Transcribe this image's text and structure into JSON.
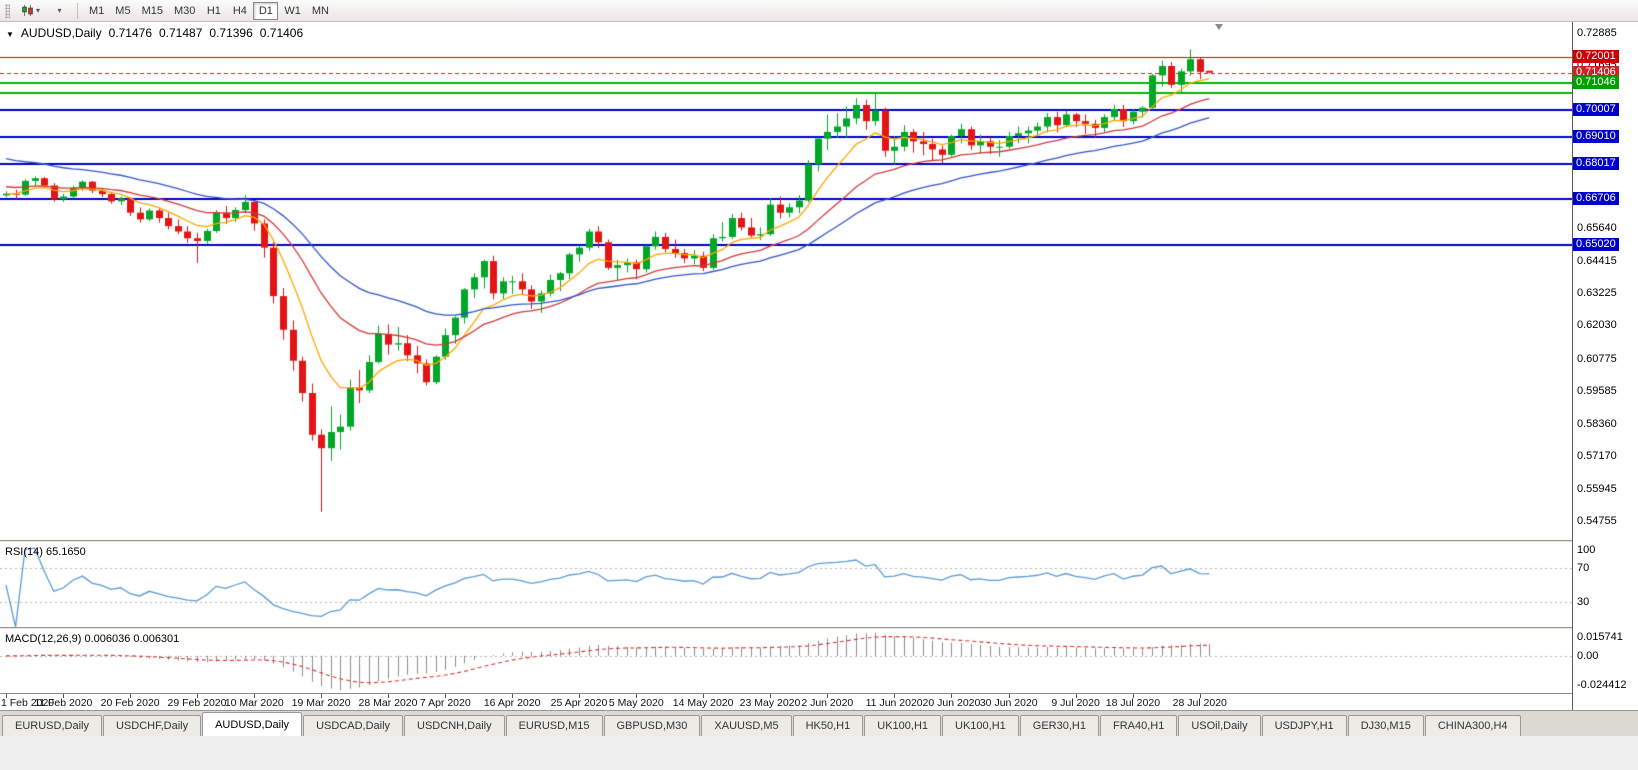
{
  "toolbar": {
    "caret": "▾",
    "timeframes": [
      "M1",
      "M5",
      "M15",
      "M30",
      "H1",
      "H4",
      "D1",
      "W1",
      "MN"
    ],
    "active_timeframe": "D1"
  },
  "chart": {
    "collapse_icon": "▼",
    "title": "AUDUSD,Daily",
    "open": "0.71476",
    "high": "0.71487",
    "low": "0.71396",
    "close": "0.71406"
  },
  "chart_data": {
    "type": "candlestick",
    "symbol": "AUDUSD",
    "timeframe": "Daily",
    "up_color": "#00A628",
    "down_color": "#E21414",
    "y_axis_labels": [
      "0.72885",
      "0.71695",
      "0.65640",
      "0.64415",
      "0.63225",
      "0.62030",
      "0.60775",
      "0.59585",
      "0.58360",
      "0.57170",
      "0.55945",
      "0.54755"
    ],
    "price_badges": [
      {
        "price": 0.72001,
        "text": "0.72001",
        "color": "#CC0000"
      },
      {
        "price": 0.71406,
        "text": "0.71406",
        "color": "#D02020"
      },
      {
        "price": 0.71046,
        "text": "0.71046",
        "color": "#00A000"
      },
      {
        "price": 0.70007,
        "text": "0.70007",
        "color": "#0000CD"
      },
      {
        "price": 0.6901,
        "text": "0.69010",
        "color": "#0000CD"
      },
      {
        "price": 0.68017,
        "text": "0.68017",
        "color": "#0000CD"
      },
      {
        "price": 0.66706,
        "text": "0.66706",
        "color": "#0000CD"
      },
      {
        "price": 0.6502,
        "text": "0.65020",
        "color": "#0000CD"
      }
    ],
    "hlines": [
      {
        "price": 0.72001,
        "color": "#CC0000",
        "width": 1,
        "dash": false,
        "name": "resistance-line-red"
      },
      {
        "price": 0.71406,
        "color": "#D02020",
        "width": 1,
        "dash": true,
        "name": "current-price-line"
      },
      {
        "price": 0.71046,
        "color": "#00B400",
        "width": 2,
        "dash": false,
        "name": "level-line-green-1"
      },
      {
        "price": 0.7065,
        "color": "#00B400",
        "width": 2,
        "dash": false,
        "name": "level-line-green-2"
      },
      {
        "price": 0.70007,
        "color": "#0000CD",
        "width": 2,
        "dash": false,
        "name": "support-line-blue-1"
      },
      {
        "price": 0.6901,
        "color": "#0000CD",
        "width": 2,
        "dash": false,
        "name": "support-line-blue-2"
      },
      {
        "price": 0.68017,
        "color": "#0000CD",
        "width": 2,
        "dash": false,
        "name": "support-line-blue-3"
      },
      {
        "price": 0.66706,
        "color": "#0000CD",
        "width": 2,
        "dash": false,
        "name": "support-line-blue-4"
      },
      {
        "price": 0.6502,
        "color": "#0000CD",
        "width": 2,
        "dash": false,
        "name": "support-line-blue-5"
      }
    ],
    "x_labels": [
      {
        "i": 0,
        "text": "1 Feb 2020"
      },
      {
        "i": 6,
        "text": "11 Feb 2020"
      },
      {
        "i": 13,
        "text": "20 Feb 2020"
      },
      {
        "i": 20,
        "text": "29 Feb 2020"
      },
      {
        "i": 26,
        "text": "10 Mar 2020"
      },
      {
        "i": 33,
        "text": "19 Mar 2020"
      },
      {
        "i": 40,
        "text": "28 Mar 2020"
      },
      {
        "i": 46,
        "text": "7 Apr 2020"
      },
      {
        "i": 53,
        "text": "16 Apr 2020"
      },
      {
        "i": 60,
        "text": "25 Apr 2020"
      },
      {
        "i": 66,
        "text": "5 May 2020"
      },
      {
        "i": 73,
        "text": "14 May 2020"
      },
      {
        "i": 80,
        "text": "23 May 2020"
      },
      {
        "i": 86,
        "text": "2 Jun 2020"
      },
      {
        "i": 93,
        "text": "11 Jun 2020"
      },
      {
        "i": 99,
        "text": "20 Jun 2020"
      },
      {
        "i": 105,
        "text": "30 Jun 2020"
      },
      {
        "i": 112,
        "text": "9 Jul 2020"
      },
      {
        "i": 118,
        "text": "18 Jul 2020"
      },
      {
        "i": 125,
        "text": "28 Jul 2020"
      }
    ],
    "moving_averages": [
      {
        "name": "fast-ma",
        "period": 8,
        "color": "#FFA500",
        "seed": null
      },
      {
        "name": "medium-ma",
        "period": 20,
        "color": "#D23B3B",
        "seed": 0.672
      },
      {
        "name": "slow-ma",
        "period": 34,
        "color": "#3355CC",
        "seed": 0.683
      }
    ],
    "indicators": {
      "rsi": {
        "label": "RSI(14) 65.1650",
        "period": 14,
        "value": 65.165,
        "levels": [
          100,
          70,
          30
        ],
        "color": "#5B9BD5"
      },
      "macd": {
        "label": "MACD(12,26,9) 0.006036 0.006301",
        "fast": 12,
        "slow": 26,
        "signal": 9,
        "values": [
          0.006036,
          0.006301
        ],
        "axis_labels": [
          "0.015741",
          "0.00",
          "-0.024412"
        ],
        "hist_color": "#8c8c8c",
        "signal_color": "#E03030"
      }
    },
    "candles": [
      [
        0.6685,
        0.6701,
        0.6678,
        0.6692
      ],
      [
        0.6692,
        0.6706,
        0.6671,
        0.6688
      ],
      [
        0.6688,
        0.6745,
        0.6683,
        0.6739
      ],
      [
        0.6739,
        0.6756,
        0.6721,
        0.6749
      ],
      [
        0.6749,
        0.6753,
        0.6714,
        0.6722
      ],
      [
        0.6722,
        0.6731,
        0.6662,
        0.6671
      ],
      [
        0.6671,
        0.6691,
        0.6661,
        0.6681
      ],
      [
        0.6681,
        0.6721,
        0.6673,
        0.6713
      ],
      [
        0.6713,
        0.6741,
        0.6701,
        0.6736
      ],
      [
        0.6736,
        0.6739,
        0.6694,
        0.6703
      ],
      [
        0.6703,
        0.6711,
        0.6679,
        0.669
      ],
      [
        0.669,
        0.6696,
        0.6654,
        0.6663
      ],
      [
        0.6663,
        0.6681,
        0.6649,
        0.6673
      ],
      [
        0.6673,
        0.6679,
        0.6609,
        0.6621
      ],
      [
        0.6621,
        0.6641,
        0.6584,
        0.6596
      ],
      [
        0.6596,
        0.6637,
        0.6591,
        0.6629
      ],
      [
        0.6629,
        0.6636,
        0.6584,
        0.6601
      ],
      [
        0.6601,
        0.6621,
        0.6559,
        0.6571
      ],
      [
        0.6571,
        0.6596,
        0.6541,
        0.6551
      ],
      [
        0.6551,
        0.6571,
        0.6509,
        0.6526
      ],
      [
        0.6526,
        0.6546,
        0.6434,
        0.6516
      ],
      [
        0.6516,
        0.6561,
        0.6506,
        0.6553
      ],
      [
        0.6553,
        0.6631,
        0.6546,
        0.6621
      ],
      [
        0.6621,
        0.6646,
        0.6579,
        0.6601
      ],
      [
        0.6601,
        0.6641,
        0.6586,
        0.6631
      ],
      [
        0.6631,
        0.6686,
        0.6619,
        0.6661
      ],
      [
        0.6661,
        0.6666,
        0.6554,
        0.6581
      ],
      [
        0.6581,
        0.6596,
        0.6454,
        0.6491
      ],
      [
        0.6491,
        0.6511,
        0.6284,
        0.6311
      ],
      [
        0.6311,
        0.6341,
        0.6149,
        0.6186
      ],
      [
        0.6186,
        0.6221,
        0.6034,
        0.6071
      ],
      [
        0.6071,
        0.6086,
        0.5919,
        0.5951
      ],
      [
        0.5951,
        0.5986,
        0.5774,
        0.5796
      ],
      [
        0.5796,
        0.5816,
        0.551,
        0.5746
      ],
      [
        0.5746,
        0.5901,
        0.5699,
        0.5806
      ],
      [
        0.5806,
        0.5871,
        0.5741,
        0.5826
      ],
      [
        0.5826,
        0.6001,
        0.5811,
        0.5971
      ],
      [
        0.5971,
        0.6036,
        0.5914,
        0.5961
      ],
      [
        0.5961,
        0.6091,
        0.5951,
        0.6066
      ],
      [
        0.6066,
        0.6201,
        0.6061,
        0.6171
      ],
      [
        0.6171,
        0.6206,
        0.6094,
        0.6131
      ],
      [
        0.6131,
        0.6196,
        0.6109,
        0.6136
      ],
      [
        0.6136,
        0.6166,
        0.6069,
        0.6091
      ],
      [
        0.6091,
        0.6126,
        0.6024,
        0.6061
      ],
      [
        0.6061,
        0.6076,
        0.5979,
        0.5991
      ],
      [
        0.5991,
        0.6091,
        0.5984,
        0.6086
      ],
      [
        0.6086,
        0.6191,
        0.6074,
        0.6166
      ],
      [
        0.6166,
        0.6236,
        0.6134,
        0.6231
      ],
      [
        0.6231,
        0.6341,
        0.6209,
        0.6336
      ],
      [
        0.6336,
        0.6396,
        0.6304,
        0.6381
      ],
      [
        0.6381,
        0.6446,
        0.6339,
        0.6441
      ],
      [
        0.6441,
        0.6461,
        0.6299,
        0.6321
      ],
      [
        0.6321,
        0.6381,
        0.6301,
        0.6366
      ],
      [
        0.6366,
        0.6386,
        0.6319,
        0.6366
      ],
      [
        0.6366,
        0.6396,
        0.6319,
        0.6336
      ],
      [
        0.6336,
        0.6351,
        0.6264,
        0.6291
      ],
      [
        0.6291,
        0.6331,
        0.6249,
        0.6321
      ],
      [
        0.6321,
        0.6391,
        0.6309,
        0.6371
      ],
      [
        0.6371,
        0.6401,
        0.6329,
        0.6396
      ],
      [
        0.6396,
        0.6471,
        0.6374,
        0.6466
      ],
      [
        0.6466,
        0.6501,
        0.6439,
        0.6491
      ],
      [
        0.6491,
        0.6561,
        0.6479,
        0.6551
      ],
      [
        0.6551,
        0.6571,
        0.6489,
        0.6511
      ],
      [
        0.6511,
        0.6521,
        0.6409,
        0.6416
      ],
      [
        0.6416,
        0.6446,
        0.6369,
        0.6426
      ],
      [
        0.6426,
        0.6451,
        0.6399,
        0.6436
      ],
      [
        0.6436,
        0.6446,
        0.6374,
        0.6411
      ],
      [
        0.6411,
        0.6501,
        0.6399,
        0.6496
      ],
      [
        0.6496,
        0.6551,
        0.6484,
        0.6531
      ],
      [
        0.6531,
        0.6546,
        0.6474,
        0.6486
      ],
      [
        0.6486,
        0.6521,
        0.6454,
        0.6471
      ],
      [
        0.6471,
        0.6486,
        0.6434,
        0.6451
      ],
      [
        0.6451,
        0.6481,
        0.6429,
        0.6461
      ],
      [
        0.6461,
        0.6476,
        0.6404,
        0.6416
      ],
      [
        0.6416,
        0.6541,
        0.6409,
        0.6526
      ],
      [
        0.6526,
        0.6586,
        0.6514,
        0.6531
      ],
      [
        0.6531,
        0.6616,
        0.6524,
        0.6601
      ],
      [
        0.6601,
        0.6621,
        0.6554,
        0.6566
      ],
      [
        0.6566,
        0.6601,
        0.6529,
        0.6536
      ],
      [
        0.6536,
        0.6566,
        0.6519,
        0.6541
      ],
      [
        0.6541,
        0.6676,
        0.6534,
        0.6651
      ],
      [
        0.6651,
        0.6681,
        0.6599,
        0.6621
      ],
      [
        0.6621,
        0.6656,
        0.6604,
        0.6641
      ],
      [
        0.6641,
        0.6686,
        0.6619,
        0.6666
      ],
      [
        0.6666,
        0.6816,
        0.6659,
        0.6801
      ],
      [
        0.6801,
        0.6901,
        0.6774,
        0.6896
      ],
      [
        0.6896,
        0.6986,
        0.6854,
        0.6921
      ],
      [
        0.6921,
        0.6991,
        0.6899,
        0.6941
      ],
      [
        0.6941,
        0.7016,
        0.6899,
        0.6971
      ],
      [
        0.6971,
        0.7046,
        0.6949,
        0.7021
      ],
      [
        0.7021,
        0.7041,
        0.6929,
        0.6961
      ],
      [
        0.6961,
        0.7064,
        0.6944,
        0.7001
      ],
      [
        0.7001,
        0.7011,
        0.6829,
        0.6851
      ],
      [
        0.6851,
        0.6906,
        0.6799,
        0.6866
      ],
      [
        0.6866,
        0.6946,
        0.6849,
        0.6921
      ],
      [
        0.6921,
        0.6931,
        0.6844,
        0.6886
      ],
      [
        0.6886,
        0.6921,
        0.6834,
        0.6876
      ],
      [
        0.6876,
        0.6896,
        0.6814,
        0.6856
      ],
      [
        0.6856,
        0.6871,
        0.6804,
        0.6836
      ],
      [
        0.6836,
        0.6911,
        0.6829,
        0.6906
      ],
      [
        0.6906,
        0.6951,
        0.6879,
        0.6931
      ],
      [
        0.6931,
        0.6941,
        0.6854,
        0.6871
      ],
      [
        0.6871,
        0.6911,
        0.6839,
        0.6886
      ],
      [
        0.6886,
        0.6901,
        0.6839,
        0.6866
      ],
      [
        0.6866,
        0.6891,
        0.6829,
        0.6866
      ],
      [
        0.6866,
        0.6921,
        0.6859,
        0.6906
      ],
      [
        0.6906,
        0.6941,
        0.6879,
        0.6916
      ],
      [
        0.6916,
        0.6941,
        0.6879,
        0.6926
      ],
      [
        0.6926,
        0.6956,
        0.6904,
        0.6941
      ],
      [
        0.6941,
        0.6991,
        0.6919,
        0.6976
      ],
      [
        0.6976,
        0.6996,
        0.6919,
        0.6946
      ],
      [
        0.6946,
        0.7001,
        0.6939,
        0.6986
      ],
      [
        0.6986,
        0.6991,
        0.6939,
        0.6961
      ],
      [
        0.6961,
        0.6986,
        0.6914,
        0.6951
      ],
      [
        0.6951,
        0.6966,
        0.6899,
        0.6936
      ],
      [
        0.6936,
        0.6986,
        0.6919,
        0.6976
      ],
      [
        0.6976,
        0.7021,
        0.6964,
        0.7006
      ],
      [
        0.7006,
        0.7021,
        0.6939,
        0.6961
      ],
      [
        0.6961,
        0.7006,
        0.6949,
        0.6996
      ],
      [
        0.6996,
        0.7016,
        0.6974,
        0.7011
      ],
      [
        0.7011,
        0.7136,
        0.7004,
        0.7131
      ],
      [
        0.7131,
        0.7186,
        0.7089,
        0.7166
      ],
      [
        0.7166,
        0.7181,
        0.7084,
        0.7096
      ],
      [
        0.7096,
        0.7156,
        0.7064,
        0.7146
      ],
      [
        0.7146,
        0.7227,
        0.7129,
        0.7191
      ],
      [
        0.7191,
        0.7196,
        0.7117,
        0.7144
      ],
      [
        0.7148,
        0.7149,
        0.714,
        0.7141
      ]
    ]
  },
  "bottom_tabs": {
    "active": "AUDUSD,Daily",
    "tabs": [
      "EURUSD,Daily",
      "USDCHF,Daily",
      "AUDUSD,Daily",
      "USDCAD,Daily",
      "USDCNH,Daily",
      "EURUSD,M15",
      "GBPUSD,M30",
      "XAUUSD,M5",
      "HK50,H1",
      "UK100,H1",
      "UK100,H1",
      "GER30,H1",
      "FRA40,H1",
      "USOil,Daily",
      "USDJPY,H1",
      "DJ30,M15",
      "CHINA300,H4"
    ]
  }
}
